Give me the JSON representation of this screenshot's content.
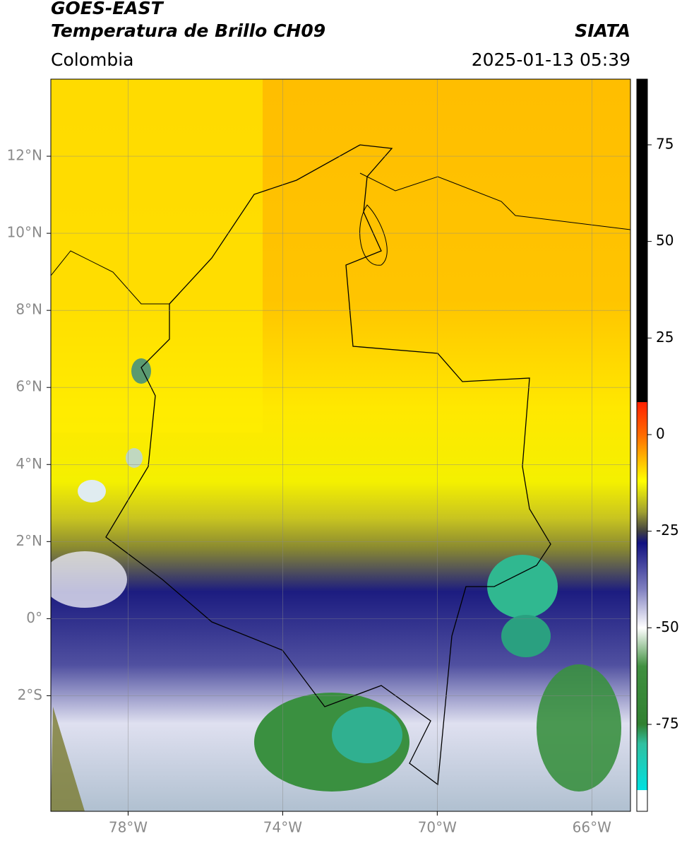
{
  "header": {
    "title": "GOES-EAST",
    "subtitle": "Temperatura de Brillo CH09",
    "source": "SIATA",
    "region": "Colombia",
    "datetime": "2025-01-13 05:39"
  },
  "map": {
    "xlim": [
      -80,
      -65
    ],
    "ylim": [
      -5,
      14
    ],
    "xticks": [
      {
        "value": -78,
        "label": "78°W"
      },
      {
        "value": -74,
        "label": "74°W"
      },
      {
        "value": -70,
        "label": "70°W"
      },
      {
        "value": -66,
        "label": "66°W"
      }
    ],
    "yticks": [
      {
        "value": 12,
        "label": "12°N"
      },
      {
        "value": 10,
        "label": "10°N"
      },
      {
        "value": 8,
        "label": "8°N"
      },
      {
        "value": 6,
        "label": "6°N"
      },
      {
        "value": 4,
        "label": "4°N"
      },
      {
        "value": 2,
        "label": "2°N"
      },
      {
        "value": 0,
        "label": "0°"
      },
      {
        "value": -2,
        "label": "2°S"
      }
    ],
    "grid": true
  },
  "colorbar": {
    "lim": [
      -97.5,
      92
    ],
    "ticks": [
      75,
      50,
      25,
      0,
      -25,
      -50,
      -75
    ],
    "colormap": [
      {
        "value": 92,
        "color": "#000000"
      },
      {
        "value": 8.4,
        "color": "#000000"
      },
      {
        "value": 8.4,
        "color": "#ff2000"
      },
      {
        "value": 0,
        "color": "#ff6a00"
      },
      {
        "value": -12,
        "color": "#ffff00"
      },
      {
        "value": -20,
        "color": "#a0a030"
      },
      {
        "value": -25,
        "color": "#404040"
      },
      {
        "value": -28,
        "color": "#101080"
      },
      {
        "value": -40,
        "color": "#8080c0"
      },
      {
        "value": -50,
        "color": "#ffffff"
      },
      {
        "value": -60,
        "color": "#409040"
      },
      {
        "value": -75,
        "color": "#308030"
      },
      {
        "value": -80,
        "color": "#30c0a0"
      },
      {
        "value": -92,
        "color": "#00e0e0"
      },
      {
        "value": -92,
        "color": "#ffffff"
      },
      {
        "value": -97.5,
        "color": "#ffffff"
      }
    ]
  }
}
